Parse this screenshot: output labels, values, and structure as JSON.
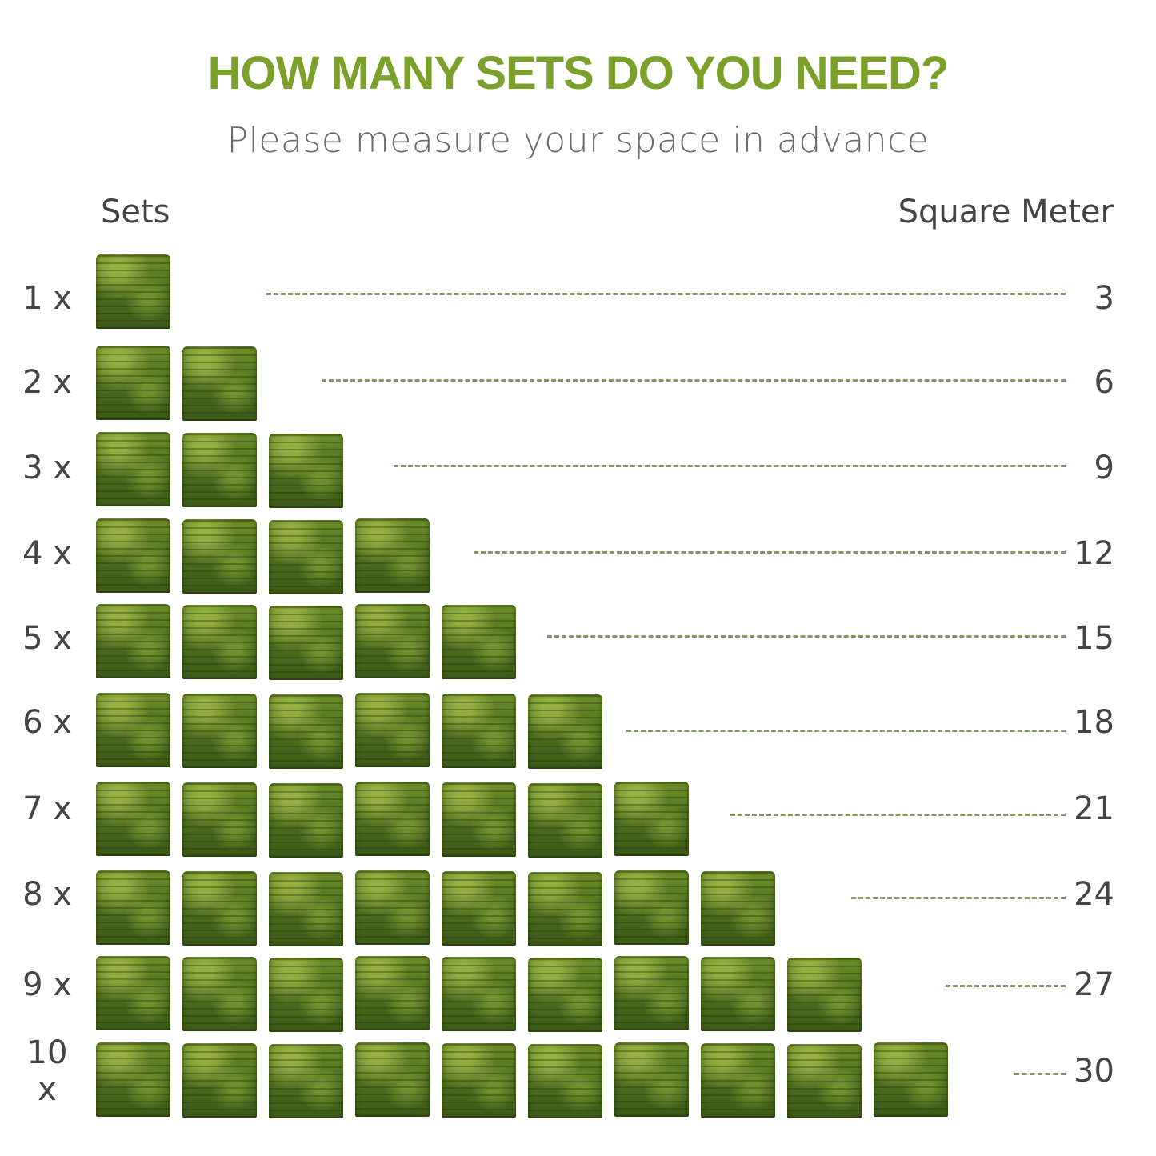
{
  "header": {
    "title": "HOW MANY SETS DO YOU NEED?",
    "subtitle": "Please measure your space in advance"
  },
  "columns": {
    "left": "Sets",
    "right": "Square Meter"
  },
  "colors": {
    "title": "#7ba12a",
    "dash": "#7f9a62",
    "panel": "#55741f"
  },
  "rows": [
    {
      "label": "1 x",
      "sets": 1,
      "value": "3"
    },
    {
      "label": "2 x",
      "sets": 2,
      "value": "6"
    },
    {
      "label": "3 x",
      "sets": 3,
      "value": "9"
    },
    {
      "label": "4 x",
      "sets": 4,
      "value": "12"
    },
    {
      "label": "5 x",
      "sets": 5,
      "value": "15"
    },
    {
      "label": "6 x",
      "sets": 6,
      "value": "18"
    },
    {
      "label": "7 x",
      "sets": 7,
      "value": "21"
    },
    {
      "label": "8 x",
      "sets": 8,
      "value": "24"
    },
    {
      "label": "9 x",
      "sets": 9,
      "value": "27"
    },
    {
      "label": "10 x",
      "sets": 10,
      "value": "30"
    }
  ]
}
